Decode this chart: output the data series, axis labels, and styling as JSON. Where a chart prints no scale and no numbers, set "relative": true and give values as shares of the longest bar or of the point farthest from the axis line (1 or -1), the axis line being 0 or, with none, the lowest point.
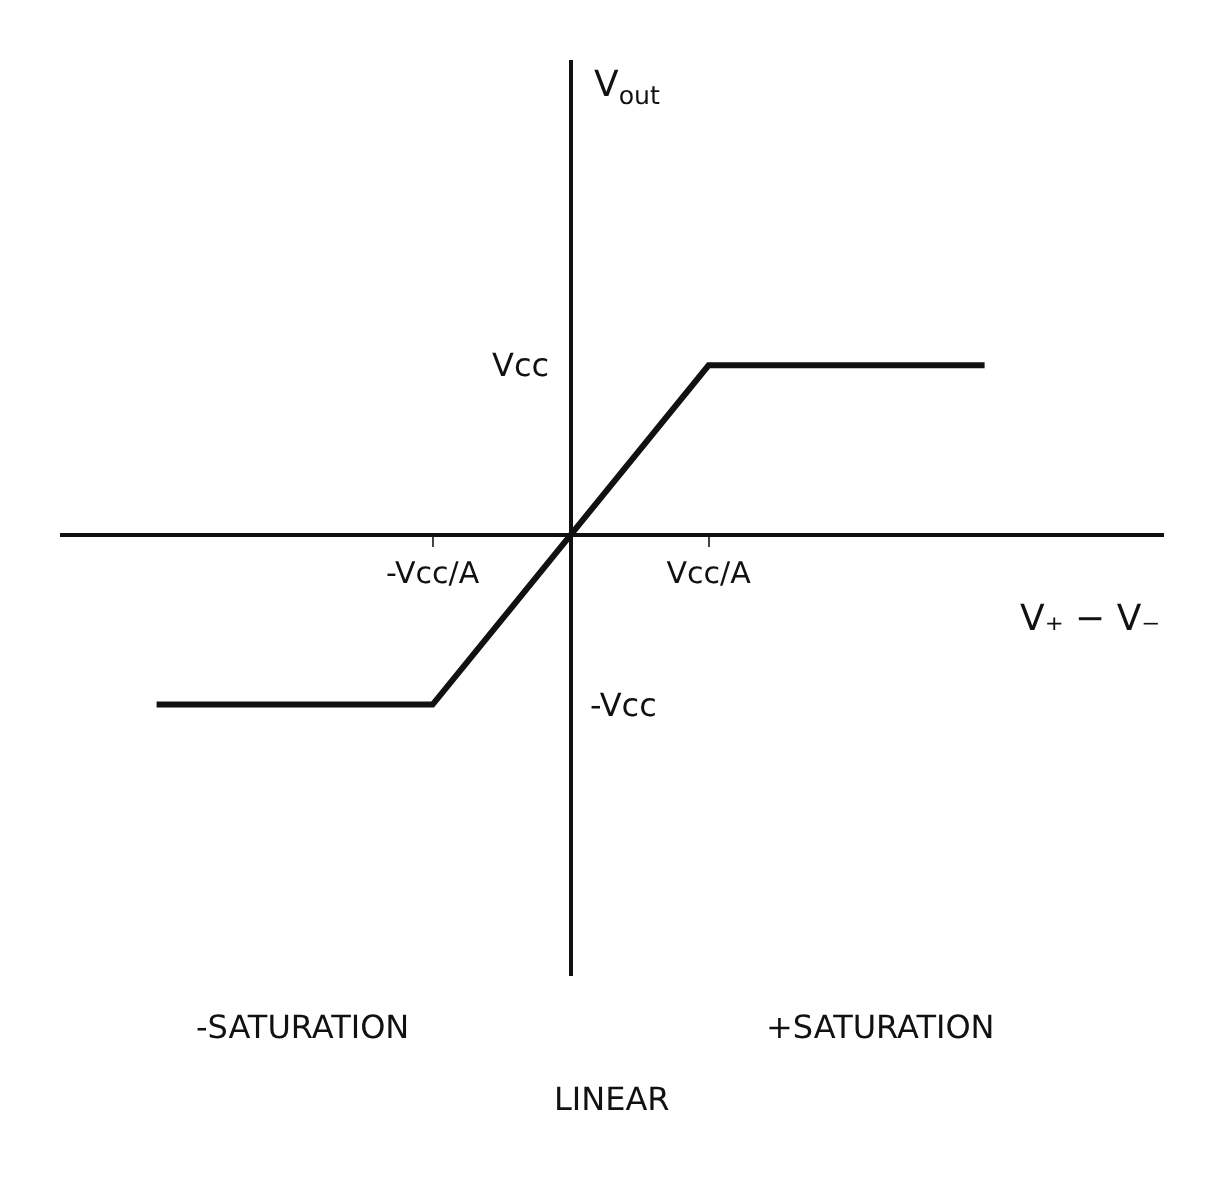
{
  "chart_data": {
    "type": "line",
    "relative": true,
    "xlabel": "V₊ − V₋",
    "categories": [
      null,
      "-Vcc/A",
      "Vcc/A",
      null
    ],
    "series": [
      {
        "color": "#111111",
        "values": [
          -1,
          -1,
          1,
          1
        ]
      }
    ],
    "marker": "none",
    "line_style": "solid",
    "annotations": [
      "V$_{out}$",
      "Vcc",
      "-Vcc",
      "-SATURATION",
      "LINEAR",
      "+SATURATION"
    ]
  }
}
